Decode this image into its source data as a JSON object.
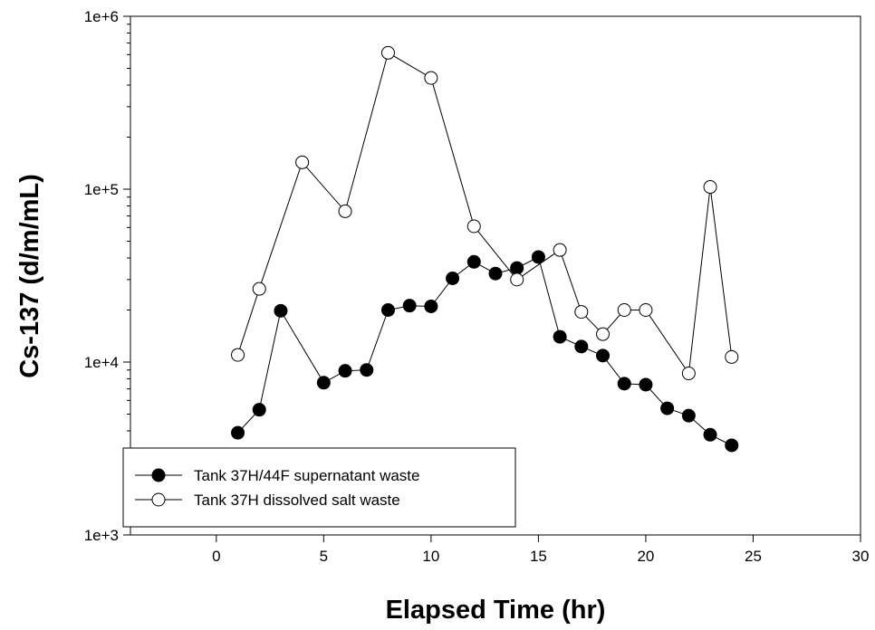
{
  "chart_data": {
    "type": "line",
    "title": "",
    "xlabel": "Elapsed Time (hr)",
    "ylabel": "Cs-137 (d/m/mL)",
    "xlim": [
      -4,
      30
    ],
    "ylim": [
      1000,
      1000000
    ],
    "yscale": "log",
    "xticks": [
      0,
      5,
      10,
      15,
      20,
      25,
      30
    ],
    "xtick_labels": [
      "0",
      "5",
      "10",
      "15",
      "20",
      "25",
      "30"
    ],
    "yticks": [
      1000,
      10000,
      100000,
      1000000
    ],
    "ytick_labels": [
      "1e+3",
      "1e+4",
      "1e+5",
      "1e+6"
    ],
    "grid": false,
    "legend_position": "bottom-left",
    "series": [
      {
        "name": "Tank 37H/44F supernatant waste",
        "marker": "filled-circle",
        "color": "#000000",
        "x": [
          1,
          2,
          3,
          5,
          6,
          7,
          8,
          9,
          10,
          11,
          12,
          13,
          14,
          15,
          16,
          17,
          18,
          19,
          20,
          21,
          22,
          23,
          24
        ],
        "y": [
          3900,
          5300,
          19800,
          7600,
          8900,
          9000,
          20000,
          21200,
          21000,
          30500,
          38000,
          32500,
          35000,
          40500,
          14000,
          12300,
          10900,
          7500,
          7400,
          5400,
          4900,
          3800,
          3300
        ]
      },
      {
        "name": "Tank 37H dissolved salt waste",
        "marker": "open-circle",
        "color": "#000000",
        "x": [
          1,
          2,
          4,
          6,
          8,
          10,
          12,
          14,
          16,
          17,
          18,
          19,
          20,
          22,
          23,
          24
        ],
        "y": [
          11000,
          26500,
          143000,
          74500,
          615000,
          440000,
          61000,
          30000,
          44500,
          19500,
          14500,
          20000,
          20000,
          8600,
          103000,
          10700
        ]
      }
    ]
  }
}
